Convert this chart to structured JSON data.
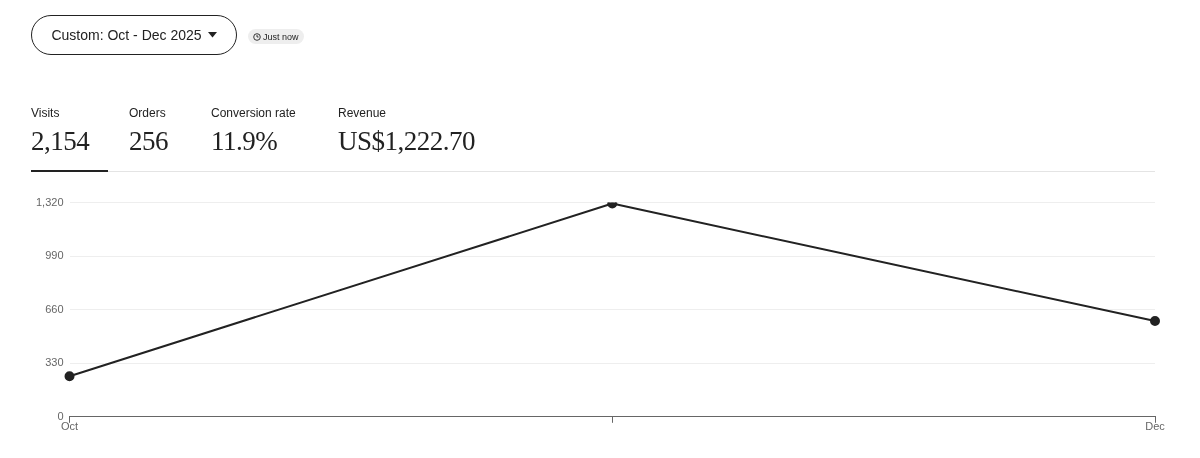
{
  "chart_data": {
    "type": "line",
    "categories": [
      "Oct",
      null,
      "Dec"
    ],
    "series": [
      {
        "color": "#222222",
        "values": [
          250,
          1314,
          590
        ]
      }
    ],
    "ylim": [
      0,
      1320
    ],
    "yticks": [
      0,
      330,
      660,
      990,
      {
        "value": 1320,
        "label": "1,320"
      }
    ],
    "grid": "y",
    "legend": false,
    "marker": "circle",
    "line_style": "solid",
    "annotations": [
      "Custom: Oct - Dec 2025",
      "Just now",
      "Visits",
      "2,154",
      "Orders",
      "256",
      "Conversion rate",
      "11.9%",
      "Revenue",
      "US$1,222.70"
    ]
  }
}
